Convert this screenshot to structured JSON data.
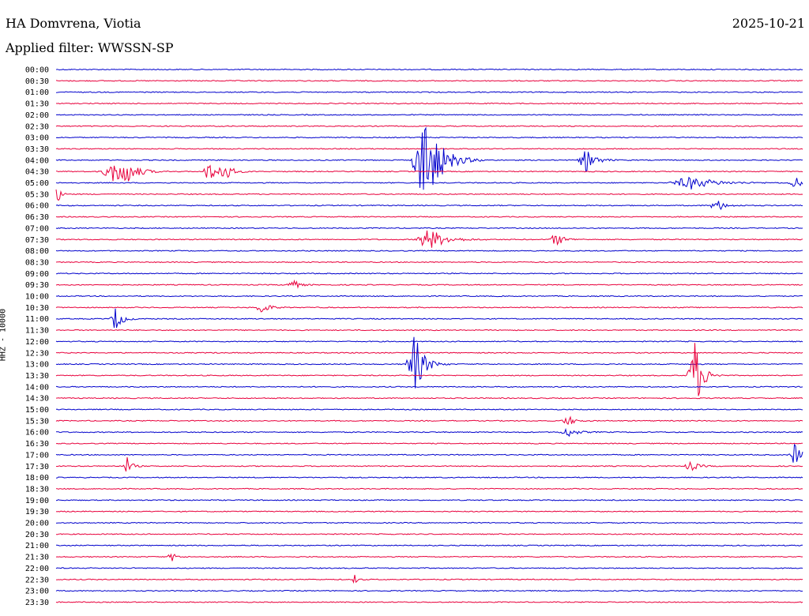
{
  "header": {
    "station": "HA Domvrena, Viotia",
    "filter": "Applied filter: WWSSN-SP",
    "date": "2025-10-21"
  },
  "chart_data": {
    "type": "line",
    "ylabel": "HHZ - 10000",
    "row_labels": [
      "00:00",
      "00:30",
      "01:00",
      "01:30",
      "02:00",
      "02:30",
      "03:00",
      "03:30",
      "04:00",
      "04:30",
      "05:00",
      "05:30",
      "06:00",
      "06:30",
      "07:00",
      "07:30",
      "08:00",
      "08:30",
      "09:00",
      "09:30",
      "10:00",
      "10:30",
      "11:00",
      "11:30",
      "12:00",
      "12:30",
      "13:00",
      "13:30",
      "14:00",
      "14:30",
      "15:00",
      "15:30",
      "16:00",
      "16:30",
      "17:00",
      "17:30",
      "18:00",
      "18:30",
      "19:00",
      "19:30",
      "20:00",
      "20:30",
      "21:00",
      "21:30",
      "22:00",
      "22:30",
      "23:00",
      "23:30"
    ],
    "trace_colors": [
      "#0000cc",
      "#e8003c"
    ],
    "grid": false,
    "events": [
      {
        "row": 8,
        "x": 0.495,
        "amp": 60,
        "width": 0.02
      },
      {
        "row": 8,
        "x": 0.71,
        "amp": 14,
        "width": 0.012
      },
      {
        "row": 9,
        "x": 0.075,
        "amp": 14,
        "width": 0.015
      },
      {
        "row": 9,
        "x": 0.095,
        "amp": 12,
        "width": 0.015
      },
      {
        "row": 9,
        "x": 0.205,
        "amp": 12,
        "width": 0.01
      },
      {
        "row": 9,
        "x": 0.225,
        "amp": 12,
        "width": 0.01
      },
      {
        "row": 10,
        "x": 0.85,
        "amp": 8,
        "width": 0.03
      },
      {
        "row": 10,
        "x": 0.99,
        "amp": 8,
        "width": 0.01
      },
      {
        "row": 11,
        "x": 0.002,
        "amp": 10,
        "width": 0.005
      },
      {
        "row": 12,
        "x": 0.885,
        "amp": 8,
        "width": 0.01
      },
      {
        "row": 15,
        "x": 0.5,
        "amp": 14,
        "width": 0.02
      },
      {
        "row": 15,
        "x": 0.67,
        "amp": 8,
        "width": 0.01
      },
      {
        "row": 19,
        "x": 0.315,
        "amp": 9,
        "width": 0.008
      },
      {
        "row": 21,
        "x": 0.275,
        "amp": 8,
        "width": 0.01
      },
      {
        "row": 22,
        "x": 0.08,
        "amp": 16,
        "width": 0.008
      },
      {
        "row": 26,
        "x": 0.48,
        "amp": 40,
        "width": 0.012
      },
      {
        "row": 27,
        "x": 0.855,
        "amp": 50,
        "width": 0.01
      },
      {
        "row": 31,
        "x": 0.685,
        "amp": 8,
        "width": 0.008
      },
      {
        "row": 32,
        "x": 0.685,
        "amp": 6,
        "width": 0.012
      },
      {
        "row": 34,
        "x": 0.99,
        "amp": 16,
        "width": 0.008
      },
      {
        "row": 35,
        "x": 0.095,
        "amp": 12,
        "width": 0.006
      },
      {
        "row": 35,
        "x": 0.85,
        "amp": 6,
        "width": 0.01
      },
      {
        "row": 43,
        "x": 0.155,
        "amp": 6,
        "width": 0.006
      },
      {
        "row": 45,
        "x": 0.4,
        "amp": 6,
        "width": 0.004
      }
    ]
  }
}
